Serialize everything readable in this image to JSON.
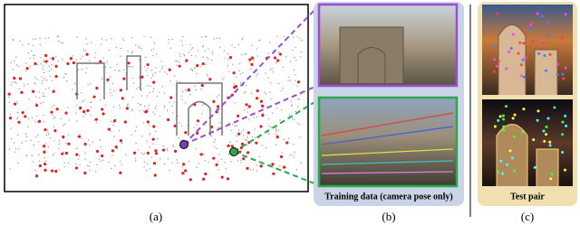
{
  "panels": [
    {
      "label": "(a)"
    },
    {
      "caption": "Training data (camera pose only)",
      "label": "(b)"
    },
    {
      "caption": "Test pair",
      "label": "(c)"
    }
  ]
}
